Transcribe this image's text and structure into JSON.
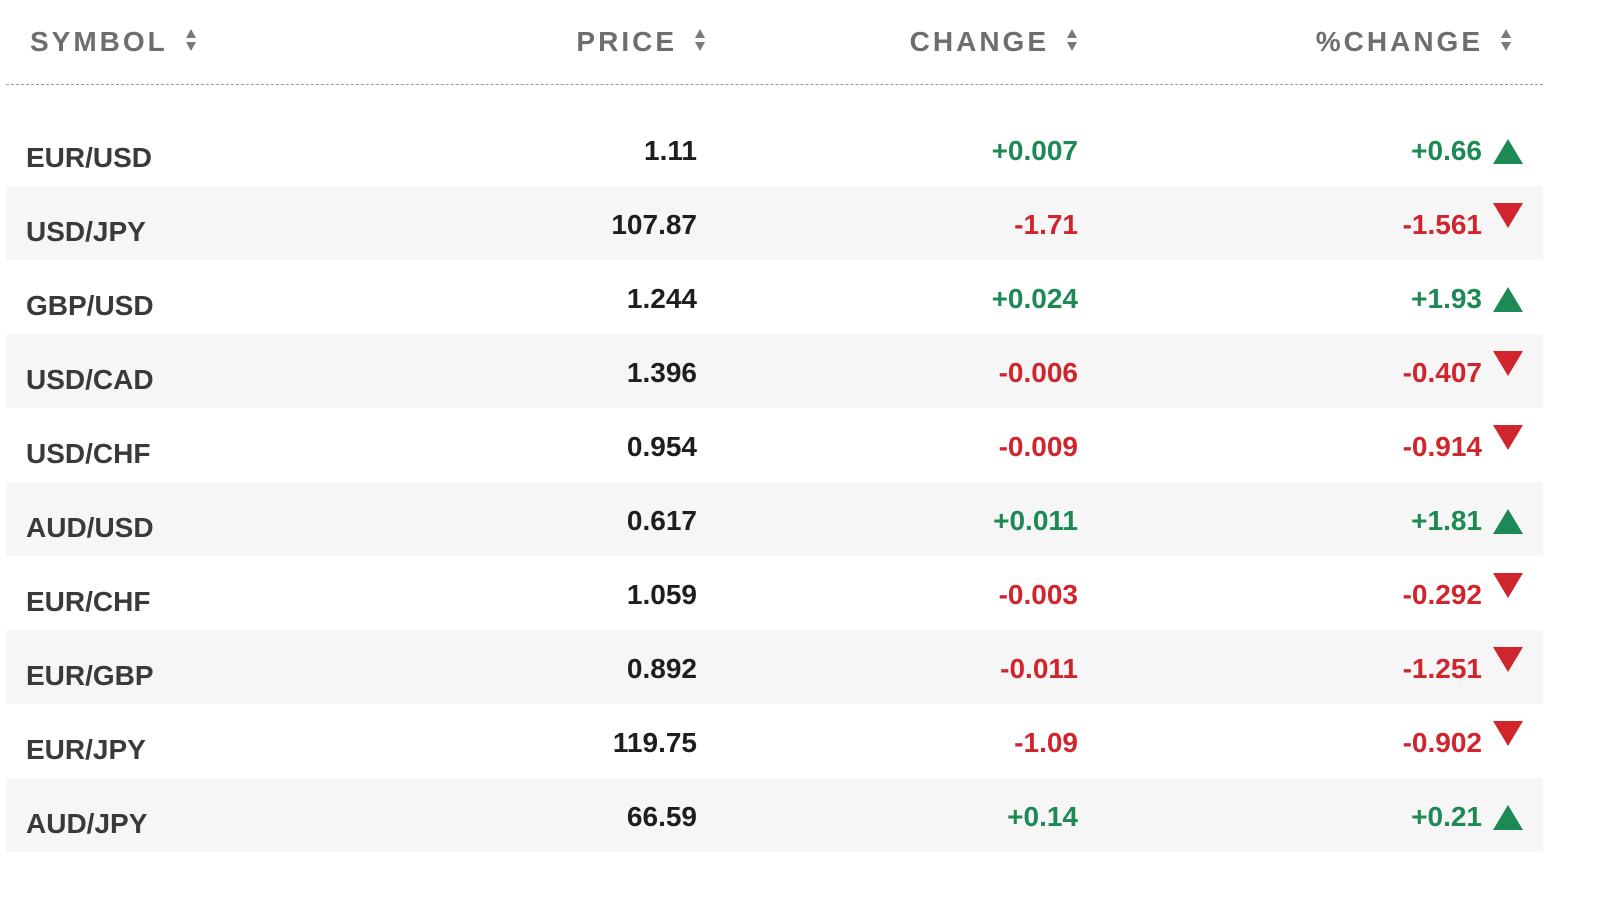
{
  "colors": {
    "positive": "#1d8a55",
    "negative": "#d1252e",
    "header_text": "#6e6e6e",
    "row_alt_bg": "#f6f6f6"
  },
  "header": {
    "symbol": "SYMBOL",
    "price": "PRICE",
    "change": "CHANGE",
    "pct_change": "%CHANGE"
  },
  "rows": [
    {
      "symbol": "EUR/USD",
      "price": "1.11",
      "change": "+0.007",
      "pct_change": "+0.66",
      "direction": "up"
    },
    {
      "symbol": "USD/JPY",
      "price": "107.87",
      "change": "-1.71",
      "pct_change": "-1.561",
      "direction": "down"
    },
    {
      "symbol": "GBP/USD",
      "price": "1.244",
      "change": "+0.024",
      "pct_change": "+1.93",
      "direction": "up"
    },
    {
      "symbol": "USD/CAD",
      "price": "1.396",
      "change": "-0.006",
      "pct_change": "-0.407",
      "direction": "down"
    },
    {
      "symbol": "USD/CHF",
      "price": "0.954",
      "change": "-0.009",
      "pct_change": "-0.914",
      "direction": "down"
    },
    {
      "symbol": "AUD/USD",
      "price": "0.617",
      "change": "+0.011",
      "pct_change": "+1.81",
      "direction": "up"
    },
    {
      "symbol": "EUR/CHF",
      "price": "1.059",
      "change": "-0.003",
      "pct_change": "-0.292",
      "direction": "down"
    },
    {
      "symbol": "EUR/GBP",
      "price": "0.892",
      "change": "-0.011",
      "pct_change": "-1.251",
      "direction": "down"
    },
    {
      "symbol": "EUR/JPY",
      "price": "119.75",
      "change": "-1.09",
      "pct_change": "-0.902",
      "direction": "down"
    },
    {
      "symbol": "AUD/JPY",
      "price": "66.59",
      "change": "+0.14",
      "pct_change": "+0.21",
      "direction": "up"
    }
  ]
}
